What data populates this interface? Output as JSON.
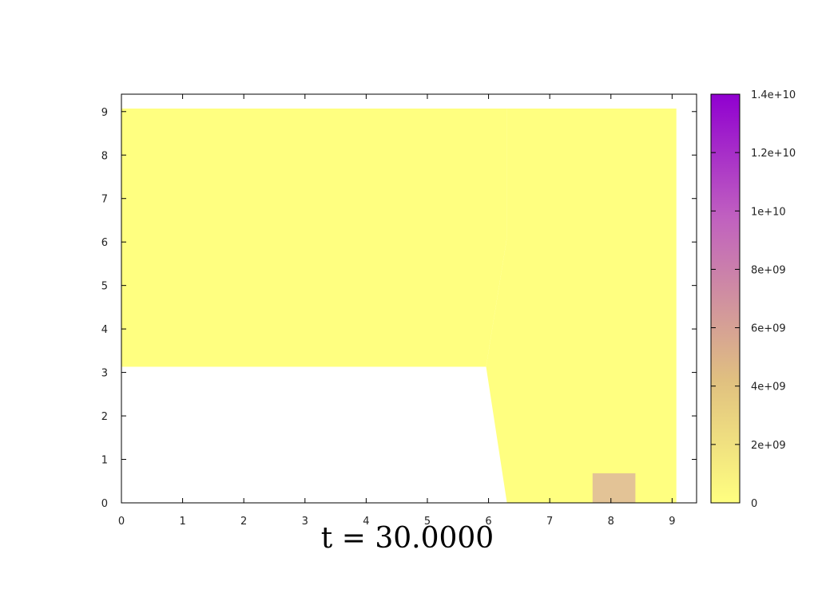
{
  "chart_data": {
    "type": "heatmap",
    "title": "t = 30.0000",
    "xlabel": "",
    "ylabel": "",
    "xlim": [
      0,
      9.4
    ],
    "ylim": [
      0,
      9.4
    ],
    "x_ticks": [
      "0",
      "1",
      "2",
      "3",
      "4",
      "5",
      "6",
      "7",
      "8",
      "9"
    ],
    "y_ticks": [
      "0",
      "1",
      "2",
      "3",
      "4",
      "5",
      "6",
      "7",
      "8",
      "9"
    ],
    "colorbar": {
      "range": [
        0,
        14000000000
      ],
      "tick_labels": [
        "0",
        "2e+09",
        "4e+09",
        "6e+09",
        "8e+09",
        "1e+10",
        "1.2e+10",
        "1.4e+10"
      ],
      "colors": [
        "#ffff80",
        "#e0c080",
        "#c060c0",
        "#9000d0"
      ]
    },
    "regions": [
      {
        "name": "upper-left-region",
        "value": 0,
        "color": "#ffff80",
        "points": [
          [
            0,
            3.13
          ],
          [
            5.96,
            3.13
          ],
          [
            6.3,
            6.1
          ],
          [
            6.3,
            9.07
          ],
          [
            5.96,
            9.07
          ],
          [
            0,
            9.07
          ]
        ]
      },
      {
        "name": "right-region",
        "value": 0,
        "color": "#ffff80",
        "points": [
          [
            5.96,
            3.13
          ],
          [
            6.3,
            6.1
          ],
          [
            6.3,
            9.07
          ],
          [
            9.07,
            9.07
          ],
          [
            9.07,
            0
          ],
          [
            6.3,
            0
          ]
        ]
      },
      {
        "name": "hot-cell",
        "value": 3500000000,
        "color": "#e3c396",
        "points": [
          [
            7.7,
            0
          ],
          [
            8.4,
            0
          ],
          [
            8.4,
            0.68
          ],
          [
            7.7,
            0.68
          ]
        ]
      }
    ]
  }
}
